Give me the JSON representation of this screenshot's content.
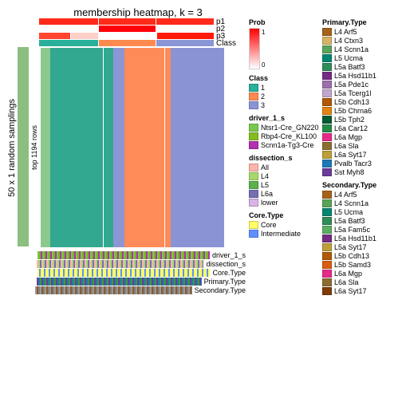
{
  "title": "membership heatmap, k = 3",
  "left_axis_label": "50 x 1 random samplings",
  "left_axis_sub": "top 1194 rows",
  "top_tracks": [
    {
      "name": "p1",
      "segments": [
        {
          "w": 34,
          "c": "#ff2a1a"
        },
        {
          "w": 33,
          "c": "#ff2a1a"
        },
        {
          "w": 33,
          "c": "#ff2a1a"
        }
      ]
    },
    {
      "name": "p2",
      "segments": [
        {
          "w": 34,
          "c": "#ffffff"
        },
        {
          "w": 33,
          "c": "#ff000a"
        },
        {
          "w": 33,
          "c": "#ffffff"
        }
      ]
    },
    {
      "name": "p3",
      "segments": [
        {
          "w": 18,
          "c": "#ff4530"
        },
        {
          "w": 16,
          "c": "#ffd0c8"
        },
        {
          "w": 33,
          "c": "#ffffff"
        },
        {
          "w": 33,
          "c": "#ff1a0a"
        }
      ]
    },
    {
      "name": "Class",
      "segments": [
        {
          "w": 34,
          "c": "#28b09a"
        },
        {
          "w": 33,
          "c": "#ff8a50"
        },
        {
          "w": 33,
          "c": "#8a95d6"
        }
      ]
    }
  ],
  "heatmap_columns": [
    {
      "width": 5,
      "color": "#8bc98f"
    },
    {
      "width": 29,
      "color": "#31a88f"
    },
    {
      "width": 0.5,
      "color": "#ffffff"
    },
    {
      "width": 5,
      "color": "#33a890"
    },
    {
      "width": 6,
      "color": "#8d96d4"
    },
    {
      "width": 22,
      "color": "#ff8b58"
    },
    {
      "width": 0.5,
      "color": "#ffffff"
    },
    {
      "width": 3,
      "color": "#ff8b58"
    },
    {
      "width": 29,
      "color": "#8a93d4"
    }
  ],
  "left_annot_color": "#8bbf80",
  "bottom_tracks": [
    {
      "name": "driver_1_s",
      "c1": "#78c850",
      "c2": "#7cb518",
      "c3": "#b030b0"
    },
    {
      "name": "dissection_s",
      "c1": "#ffb4aa",
      "c2": "#a6d96a",
      "c3": "#7570b3"
    },
    {
      "name": "Core.Type",
      "c1": "#ffff60",
      "c2": "#6090ff",
      "c3": "#ffff60"
    },
    {
      "name": "Primary.Type",
      "c1": "#6a3d9a",
      "c2": "#1f78b4",
      "c3": "#33a02c"
    },
    {
      "name": "Secondary.Type",
      "c1": "#999999",
      "c2": "#8b5a2b",
      "c3": "#808080"
    }
  ],
  "legends_col1": [
    {
      "title": "Prob",
      "type": "gradient",
      "max": "1",
      "min": "0"
    },
    {
      "title": "Class",
      "items": [
        {
          "label": "1",
          "color": "#28b09a"
        },
        {
          "label": "2",
          "color": "#ff8a50"
        },
        {
          "label": "3",
          "color": "#8a95d6"
        }
      ]
    },
    {
      "title": "driver_1_s",
      "items": [
        {
          "label": "Ntsr1-Cre_GN220",
          "color": "#78c850"
        },
        {
          "label": "Rbp4-Cre_KL100",
          "color": "#86bc1f"
        },
        {
          "label": "Scnn1a-Tg3-Cre",
          "color": "#b030b0"
        }
      ]
    },
    {
      "title": "dissection_s",
      "items": [
        {
          "label": "All",
          "color": "#ffb4aa"
        },
        {
          "label": "L4",
          "color": "#a6d96a"
        },
        {
          "label": "L5",
          "color": "#5ab04a"
        },
        {
          "label": "L6a",
          "color": "#7570b3"
        },
        {
          "label": "lower",
          "color": "#d9b3e6"
        }
      ]
    },
    {
      "title": "Core.Type",
      "items": [
        {
          "label": "Core",
          "color": "#ffff66"
        },
        {
          "label": "Intermediate",
          "color": "#6090ff"
        }
      ]
    }
  ],
  "legends_col2": [
    {
      "title": "Primary.Type",
      "items": [
        {
          "label": "L4 Arf5",
          "color": "#a6611a"
        },
        {
          "label": "L4 Ctxn3",
          "color": "#d8b365"
        },
        {
          "label": "L4 Scnn1a",
          "color": "#58a458"
        },
        {
          "label": "L5 Ucma",
          "color": "#018571"
        },
        {
          "label": "L5a Batf3",
          "color": "#2f8b57"
        },
        {
          "label": "L5a Hsd11b1",
          "color": "#762a83"
        },
        {
          "label": "L5a Pde1c",
          "color": "#9970ab"
        },
        {
          "label": "L5a Tcerg1l",
          "color": "#c2a5cf"
        },
        {
          "label": "L5b Cdh13",
          "color": "#b05806"
        },
        {
          "label": "L5b Chrna6",
          "color": "#e08214"
        },
        {
          "label": "L5b Tph2",
          "color": "#005a32"
        },
        {
          "label": "L6a Car12",
          "color": "#238b45"
        },
        {
          "label": "L6a Mgp",
          "color": "#e7298a"
        },
        {
          "label": "L6a Sla",
          "color": "#8c6d31"
        },
        {
          "label": "L6a Syt17",
          "color": "#bd9e39"
        },
        {
          "label": "Pvalb Tacr3",
          "color": "#1f78b4"
        },
        {
          "label": "Sst Myh8",
          "color": "#6a3d9a"
        }
      ]
    },
    {
      "title": "Secondary.Type",
      "items": [
        {
          "label": "L4 Arf5",
          "color": "#a6611a"
        },
        {
          "label": "L4 Scnn1a",
          "color": "#58a458"
        },
        {
          "label": "L5 Ucma",
          "color": "#018571"
        },
        {
          "label": "L5a Batf3",
          "color": "#2f8b57"
        },
        {
          "label": "L5a Fam5c",
          "color": "#5aae61"
        },
        {
          "label": "L5a Hsd11b1",
          "color": "#762a83"
        },
        {
          "label": "L5a Syt17",
          "color": "#bd9e39"
        },
        {
          "label": "L5b Cdh13",
          "color": "#b05806"
        },
        {
          "label": "L5b Samd3",
          "color": "#d95f0e"
        },
        {
          "label": "L6a Mgp",
          "color": "#e7298a"
        },
        {
          "label": "L6a Sla",
          "color": "#8c6d31"
        },
        {
          "label": "L6a Syt17",
          "color": "#7f3b08"
        }
      ]
    }
  ]
}
